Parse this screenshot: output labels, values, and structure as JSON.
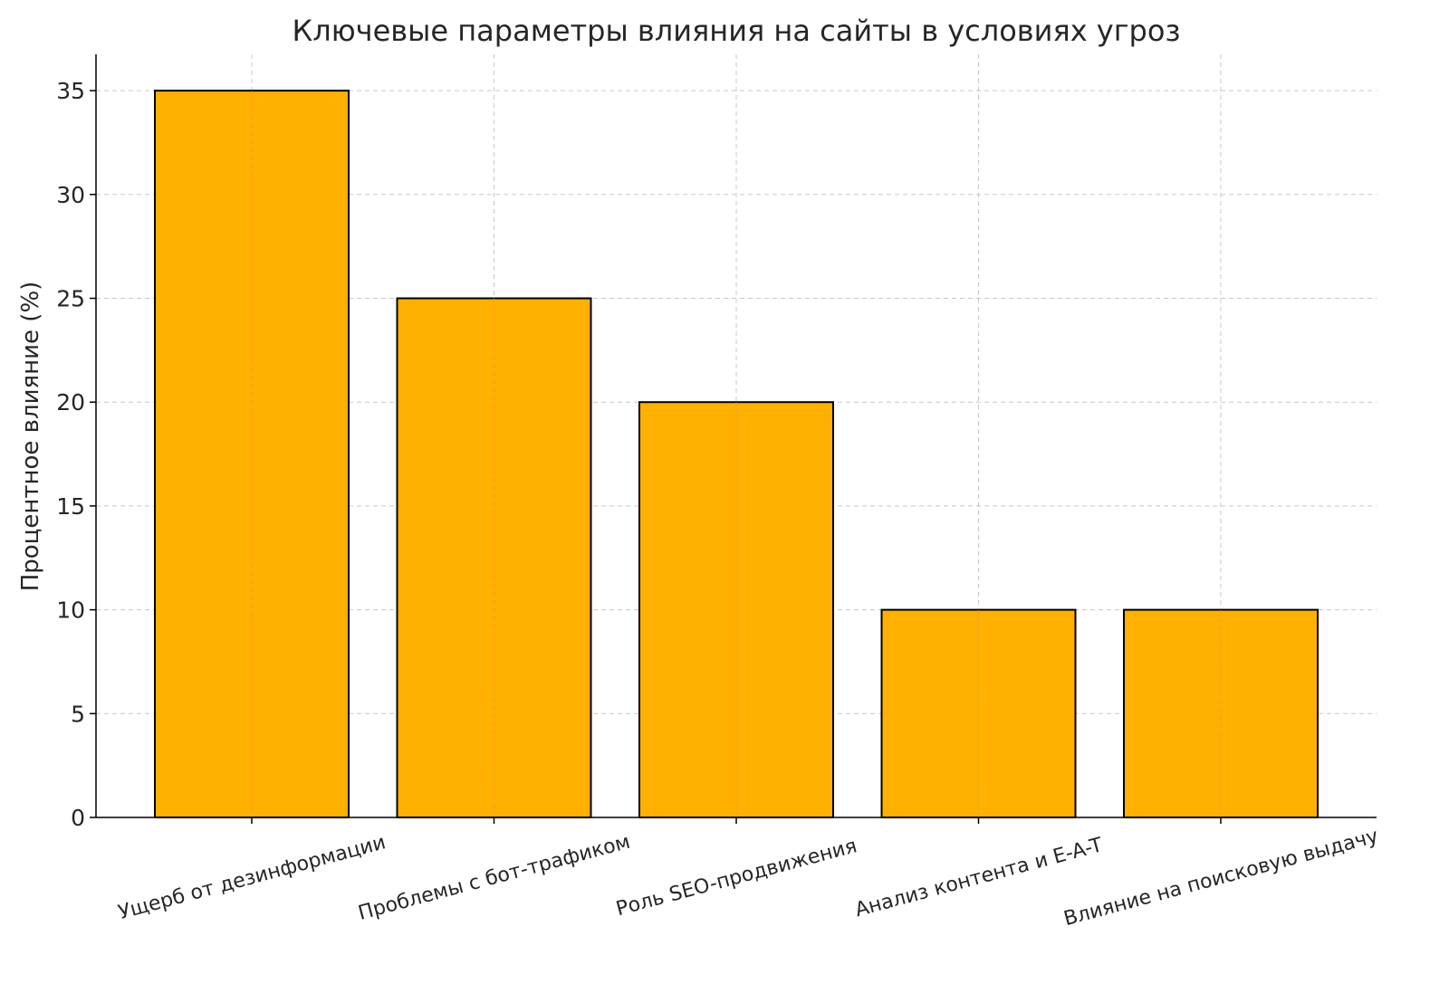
{
  "chart_data": {
    "type": "bar",
    "title": "Ключевые параметры влияния на сайты в условиях угроз",
    "xlabel": "",
    "ylabel": "Процентное влияние (%)",
    "categories": [
      "Ущерб от дезинформации",
      "Проблемы с бот-трафиком",
      "Роль SEO-продвижения",
      "Анализ контента и E-A-T",
      "Влияние на поисковую выдачу"
    ],
    "values": [
      35,
      25,
      20,
      10,
      10
    ],
    "ylim": [
      0,
      36.75
    ],
    "yticks": [
      0,
      5,
      10,
      15,
      20,
      25,
      30,
      35
    ],
    "grid": true,
    "bar_color": "#FFB000",
    "edge_color": "#000000"
  }
}
